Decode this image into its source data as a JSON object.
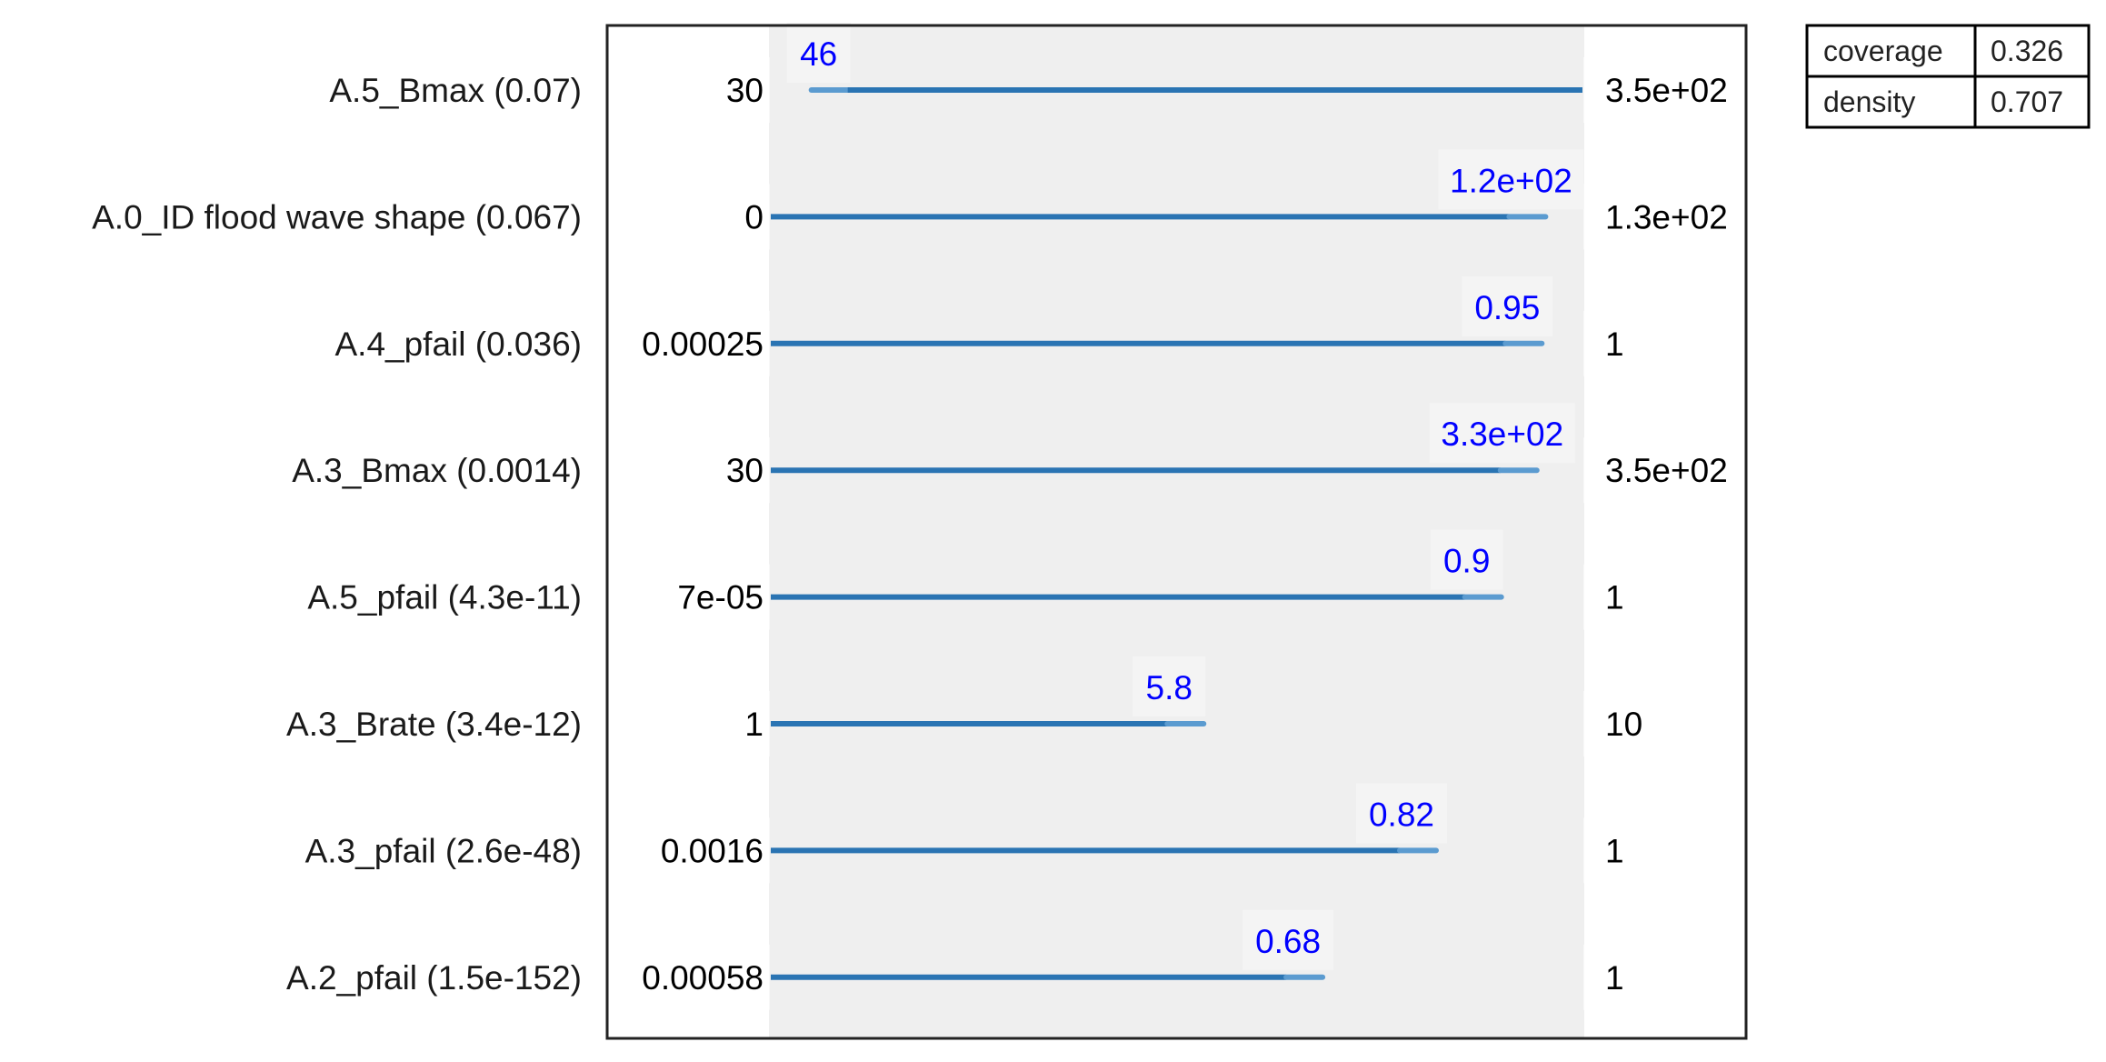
{
  "chart_data": {
    "type": "box-limits",
    "title": "",
    "xlabel": "",
    "ylabel": "",
    "grid": false,
    "legend": "none",
    "colors": {
      "bar": "#2a74b3",
      "bar_light": "#5b9bd0",
      "value_text": "#0000ff",
      "text": "#1a1a1a",
      "band": "#efefef",
      "frame": "#222222"
    },
    "parameters": [
      {
        "name": "A.5_Bmax (0.07)",
        "min_label": "30",
        "max_label": "3.5e+02",
        "range": [
          30,
          350
        ],
        "box": [
          46,
          350
        ],
        "active": "lower",
        "value_label": "46"
      },
      {
        "name": "A.0_ID flood wave shape (0.067)",
        "min_label": "0",
        "max_label": "1.3e+02",
        "range": [
          0,
          132
        ],
        "box": [
          0,
          126
        ],
        "active": "upper",
        "value_label": "1.2e+02"
      },
      {
        "name": "A.4_pfail (0.036)",
        "min_label": "0.00025",
        "max_label": "1",
        "range": [
          0.00025,
          1
        ],
        "box": [
          0.00025,
          0.95
        ],
        "active": "upper",
        "value_label": "0.95"
      },
      {
        "name": "A.3_Bmax (0.0014)",
        "min_label": "30",
        "max_label": "3.5e+02",
        "range": [
          30,
          350
        ],
        "box": [
          30,
          332
        ],
        "active": "upper",
        "value_label": "3.3e+02"
      },
      {
        "name": "A.5_pfail (4.3e-11)",
        "min_label": "7e-05",
        "max_label": "1",
        "range": [
          7e-05,
          1
        ],
        "box": [
          7e-05,
          0.9
        ],
        "active": "upper",
        "value_label": "0.9"
      },
      {
        "name": "A.3_Brate (3.4e-12)",
        "min_label": "1",
        "max_label": "10",
        "range": [
          1,
          10
        ],
        "box": [
          1,
          5.8
        ],
        "active": "upper",
        "value_label": "5.8"
      },
      {
        "name": "A.3_pfail (2.6e-48)",
        "min_label": "0.0016",
        "max_label": "1",
        "range": [
          0.0016,
          1
        ],
        "box": [
          0.0016,
          0.82
        ],
        "active": "upper",
        "value_label": "0.82"
      },
      {
        "name": "A.2_pfail (1.5e-152)",
        "min_label": "0.00058",
        "max_label": "1",
        "range": [
          0.00058,
          1
        ],
        "box": [
          0.00058,
          0.68
        ],
        "active": "upper",
        "value_label": "0.68"
      }
    ],
    "stats": [
      {
        "label": "coverage",
        "value": "0.326"
      },
      {
        "label": "density",
        "value": "0.707"
      }
    ]
  }
}
